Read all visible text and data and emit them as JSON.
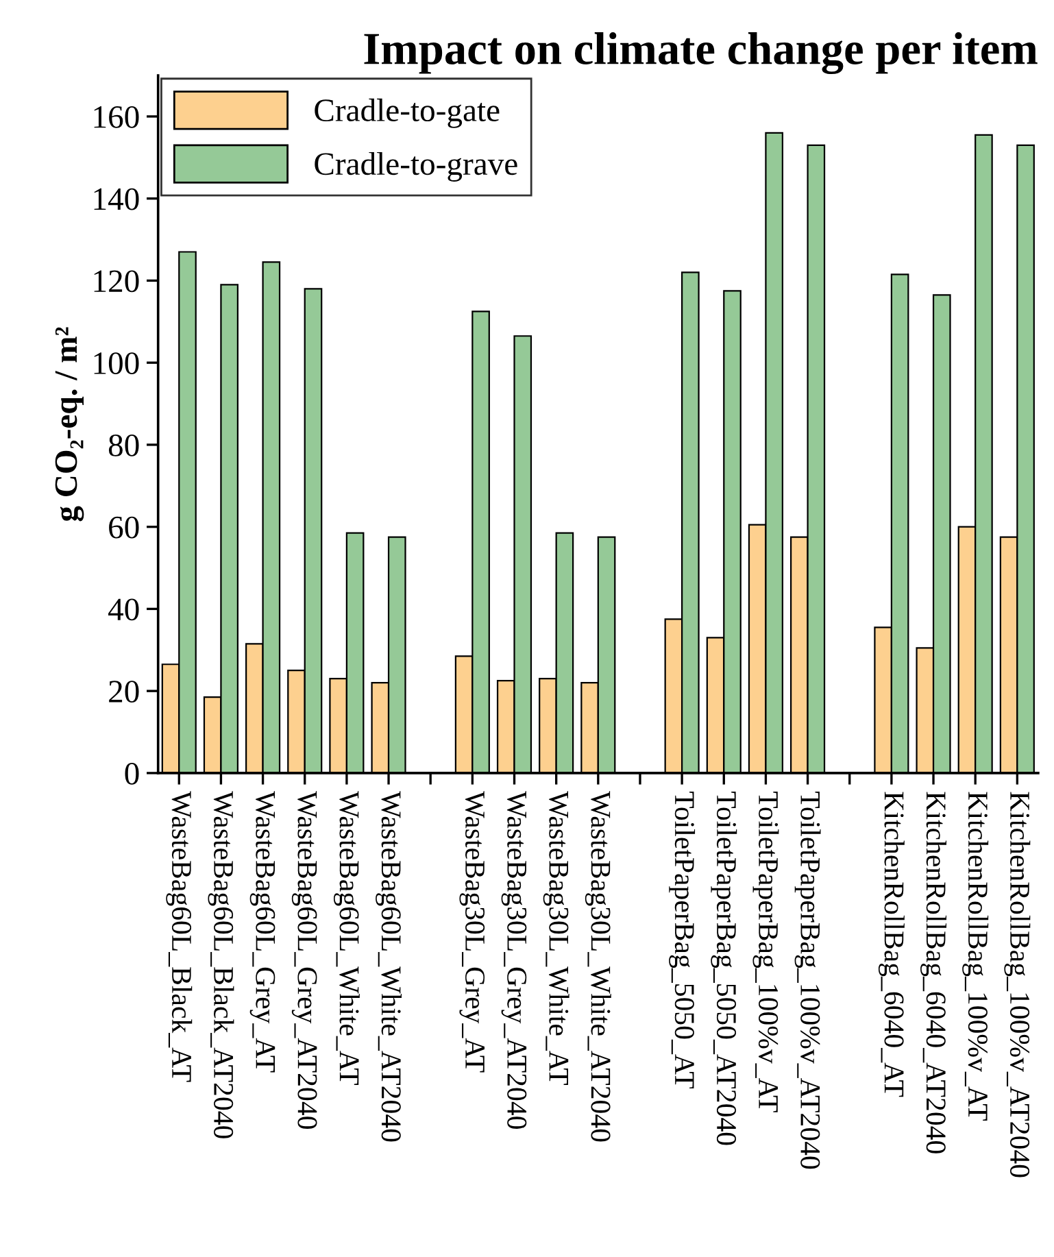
{
  "chart_data": {
    "type": "bar",
    "title": "Impact on climate change per item",
    "ylabel": "g CO₂-eq. / m²",
    "categories": [
      "WasteBag60L_Black_AT",
      "WasteBag60L_Black_AT2040",
      "WasteBag60L_Grey_AT",
      "WasteBag60L_Grey_AT2040",
      "WasteBag60L_White_AT",
      "WasteBag60L_White_AT2040",
      null,
      "WasteBag30L_Grey_AT",
      "WasteBag30L_Grey_AT2040",
      "WasteBag30L_White_AT",
      "WasteBag30L_White_AT2040",
      null,
      "ToiletPaperBag_5050_AT",
      "ToiletPaperBag_5050_AT2040",
      "ToiletPaperBag_100%v_AT",
      "ToiletPaperBag_100%v_AT2040",
      null,
      "KitchenRollBag_6040_AT",
      "KitchenRollBag_6040_AT2040",
      "KitchenRollBag_100%v_AT",
      "KitchenRollBag_100%v_AT2040"
    ],
    "series": [
      {
        "name": "Cradle-to-gate",
        "color": "#fdd08f",
        "values": [
          26.5,
          18.5,
          31.5,
          25,
          23,
          22,
          null,
          28.5,
          22.5,
          23,
          22,
          null,
          37.5,
          33,
          60.5,
          57.5,
          null,
          35.5,
          30.5,
          60,
          57.5
        ]
      },
      {
        "name": "Cradle-to-grave",
        "color": "#95c997",
        "values": [
          127,
          119,
          124.5,
          118,
          58.5,
          57.5,
          null,
          112.5,
          106.5,
          58.5,
          57.5,
          null,
          122,
          117.5,
          156,
          153,
          null,
          121.5,
          116.5,
          155.5,
          153
        ]
      }
    ],
    "ylim": [
      0,
      170
    ],
    "yticks": [
      0,
      20,
      40,
      60,
      80,
      100,
      120,
      140,
      160
    ],
    "grid": false,
    "legend": "top left"
  }
}
